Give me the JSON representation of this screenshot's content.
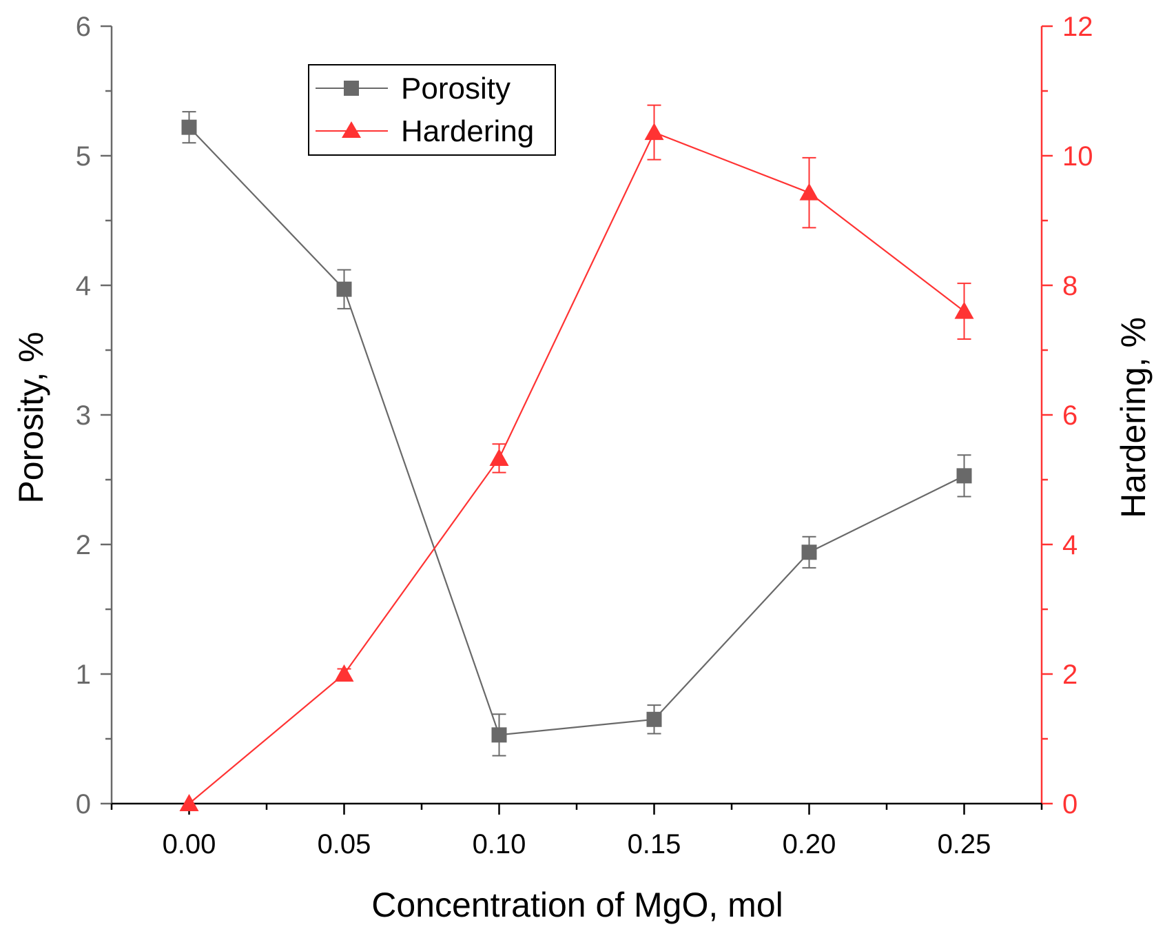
{
  "chart_data": {
    "type": "line",
    "x": [
      0.0,
      0.05,
      0.1,
      0.15,
      0.2,
      0.25
    ],
    "x_tick_labels": [
      "0.00",
      "0.05",
      "0.10",
      "0.15",
      "0.20",
      "0.25"
    ],
    "xlabel": "Concentration of MgO, mol",
    "xlim": [
      -0.025,
      0.275
    ],
    "ylabel_left": "Porosity, %",
    "ylim_left": [
      0,
      6
    ],
    "yticks_left": [
      "0",
      "1",
      "2",
      "3",
      "4",
      "5",
      "6"
    ],
    "ylabel_right": "Hardering, %",
    "ylim_right": [
      0,
      12
    ],
    "yticks_right": [
      "0",
      "2",
      "4",
      "6",
      "8",
      "10",
      "12"
    ],
    "legend_position": "top-left",
    "series": [
      {
        "name": "Porosity",
        "axis": "left",
        "marker": "square",
        "color": "#696969",
        "values": [
          5.22,
          3.97,
          0.53,
          0.65,
          1.94,
          2.53
        ],
        "errors": [
          0.12,
          0.15,
          0.16,
          0.11,
          0.12,
          0.16
        ]
      },
      {
        "name": "Hardering",
        "axis": "right",
        "marker": "triangle",
        "color": "#ff3333",
        "values": [
          0.0,
          2.0,
          5.33,
          10.36,
          9.43,
          7.6
        ],
        "errors": [
          0.0,
          0.08,
          0.22,
          0.42,
          0.54,
          0.43
        ]
      }
    ]
  }
}
